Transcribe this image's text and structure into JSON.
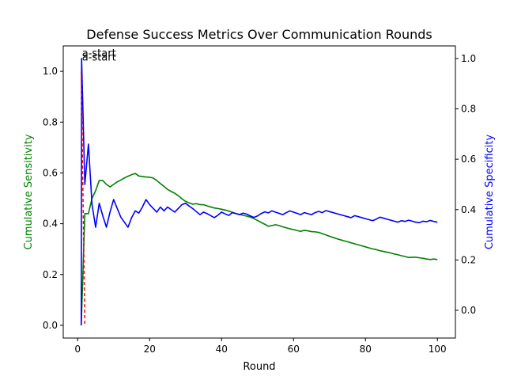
{
  "chart_data": {
    "type": "line",
    "title": "Defense Success Metrics Over Communication Rounds",
    "xlabel": "Round",
    "ylabel_left": "Cumulative Sensitivity",
    "ylabel_right": "Cumulative Specificity",
    "colors": {
      "sensitivity": "#008000",
      "specificity": "#0000ff",
      "marker": "#ff0000"
    },
    "xlim": [
      -4,
      105
    ],
    "ylim_left": [
      -0.05,
      1.1
    ],
    "ylim_right": [
      -0.11,
      1.05
    ],
    "xticks": [
      0,
      20,
      40,
      60,
      80,
      100
    ],
    "yticks_left": [
      0.0,
      0.2,
      0.4,
      0.6,
      0.8,
      1.0
    ],
    "yticks_right": [
      0.0,
      0.2,
      0.4,
      0.6,
      0.8,
      1.0
    ],
    "grid": false,
    "annotations": [
      {
        "text": "a-start",
        "x": 1,
        "y": 1.07
      },
      {
        "text": "a-start",
        "x": 1,
        "y": 1.055
      }
    ],
    "marker_line": {
      "x": [
        1,
        2
      ],
      "y": [
        1.0,
        0.0
      ]
    },
    "series": [
      {
        "axis": "left",
        "values": [
          [
            1,
            0.0
          ],
          [
            2,
            0.44
          ],
          [
            3,
            0.44
          ],
          [
            4,
            0.5
          ],
          [
            5,
            0.53
          ],
          [
            6,
            0.57
          ],
          [
            7,
            0.57
          ],
          [
            8,
            0.555
          ],
          [
            9,
            0.545
          ],
          [
            10,
            0.555
          ],
          [
            11,
            0.565
          ],
          [
            12,
            0.572
          ],
          [
            13,
            0.58
          ],
          [
            14,
            0.587
          ],
          [
            15,
            0.593
          ],
          [
            16,
            0.598
          ],
          [
            17,
            0.588
          ],
          [
            18,
            0.586
          ],
          [
            19,
            0.584
          ],
          [
            20,
            0.583
          ],
          [
            21,
            0.58
          ],
          [
            22,
            0.57
          ],
          [
            23,
            0.558
          ],
          [
            24,
            0.547
          ],
          [
            25,
            0.535
          ],
          [
            26,
            0.527
          ],
          [
            27,
            0.52
          ],
          [
            28,
            0.51
          ],
          [
            29,
            0.498
          ],
          [
            30,
            0.488
          ],
          [
            31,
            0.482
          ],
          [
            32,
            0.477
          ],
          [
            33,
            0.479
          ],
          [
            34,
            0.475
          ],
          [
            35,
            0.475
          ],
          [
            36,
            0.47
          ],
          [
            37,
            0.466
          ],
          [
            38,
            0.462
          ],
          [
            39,
            0.46
          ],
          [
            40,
            0.457
          ],
          [
            41,
            0.454
          ],
          [
            42,
            0.45
          ],
          [
            43,
            0.445
          ],
          [
            44,
            0.44
          ],
          [
            45,
            0.437
          ],
          [
            46,
            0.433
          ],
          [
            47,
            0.43
          ],
          [
            48,
            0.426
          ],
          [
            49,
            0.42
          ],
          [
            50,
            0.413
          ],
          [
            51,
            0.405
          ],
          [
            52,
            0.398
          ],
          [
            53,
            0.39
          ],
          [
            54,
            0.393
          ],
          [
            55,
            0.396
          ],
          [
            56,
            0.393
          ],
          [
            57,
            0.388
          ],
          [
            58,
            0.384
          ],
          [
            59,
            0.38
          ],
          [
            60,
            0.377
          ],
          [
            61,
            0.373
          ],
          [
            62,
            0.37
          ],
          [
            63,
            0.374
          ],
          [
            64,
            0.372
          ],
          [
            65,
            0.369
          ],
          [
            66,
            0.368
          ],
          [
            67,
            0.366
          ],
          [
            68,
            0.361
          ],
          [
            69,
            0.356
          ],
          [
            70,
            0.351
          ],
          [
            71,
            0.346
          ],
          [
            72,
            0.341
          ],
          [
            73,
            0.337
          ],
          [
            74,
            0.333
          ],
          [
            75,
            0.329
          ],
          [
            76,
            0.325
          ],
          [
            77,
            0.321
          ],
          [
            78,
            0.317
          ],
          [
            79,
            0.313
          ],
          [
            80,
            0.309
          ],
          [
            81,
            0.305
          ],
          [
            82,
            0.301
          ],
          [
            83,
            0.298
          ],
          [
            84,
            0.294
          ],
          [
            85,
            0.291
          ],
          [
            86,
            0.288
          ],
          [
            87,
            0.285
          ],
          [
            88,
            0.281
          ],
          [
            89,
            0.278
          ],
          [
            90,
            0.274
          ],
          [
            91,
            0.271
          ],
          [
            92,
            0.267
          ],
          [
            93,
            0.268
          ],
          [
            94,
            0.268
          ],
          [
            95,
            0.266
          ],
          [
            96,
            0.264
          ],
          [
            97,
            0.261
          ],
          [
            98,
            0.259
          ],
          [
            99,
            0.261
          ],
          [
            100,
            0.259
          ]
        ]
      },
      {
        "axis": "right",
        "values": [
          [
            1,
            -0.06
          ],
          [
            1.1,
            1.0
          ],
          [
            2,
            0.5
          ],
          [
            3,
            0.66
          ],
          [
            4,
            0.42
          ],
          [
            5,
            0.33
          ],
          [
            6,
            0.425
          ],
          [
            7,
            0.375
          ],
          [
            8,
            0.33
          ],
          [
            9,
            0.39
          ],
          [
            10,
            0.44
          ],
          [
            11,
            0.405
          ],
          [
            12,
            0.37
          ],
          [
            13,
            0.35
          ],
          [
            14,
            0.33
          ],
          [
            15,
            0.368
          ],
          [
            16,
            0.395
          ],
          [
            17,
            0.386
          ],
          [
            18,
            0.41
          ],
          [
            19,
            0.44
          ],
          [
            20,
            0.42
          ],
          [
            21,
            0.405
          ],
          [
            22,
            0.39
          ],
          [
            23,
            0.41
          ],
          [
            24,
            0.395
          ],
          [
            25,
            0.41
          ],
          [
            26,
            0.4
          ],
          [
            27,
            0.39
          ],
          [
            28,
            0.405
          ],
          [
            29,
            0.42
          ],
          [
            30,
            0.425
          ],
          [
            31,
            0.414
          ],
          [
            32,
            0.404
          ],
          [
            33,
            0.392
          ],
          [
            34,
            0.38
          ],
          [
            35,
            0.39
          ],
          [
            36,
            0.384
          ],
          [
            37,
            0.376
          ],
          [
            38,
            0.368
          ],
          [
            39,
            0.378
          ],
          [
            40,
            0.39
          ],
          [
            41,
            0.383
          ],
          [
            42,
            0.377
          ],
          [
            43,
            0.388
          ],
          [
            44,
            0.384
          ],
          [
            45,
            0.38
          ],
          [
            46,
            0.386
          ],
          [
            47,
            0.382
          ],
          [
            48,
            0.375
          ],
          [
            49,
            0.369
          ],
          [
            50,
            0.375
          ],
          [
            51,
            0.384
          ],
          [
            52,
            0.391
          ],
          [
            53,
            0.387
          ],
          [
            54,
            0.395
          ],
          [
            55,
            0.39
          ],
          [
            56,
            0.385
          ],
          [
            57,
            0.38
          ],
          [
            58,
            0.388
          ],
          [
            59,
            0.395
          ],
          [
            60,
            0.39
          ],
          [
            61,
            0.385
          ],
          [
            62,
            0.38
          ],
          [
            63,
            0.388
          ],
          [
            64,
            0.384
          ],
          [
            65,
            0.38
          ],
          [
            66,
            0.388
          ],
          [
            67,
            0.393
          ],
          [
            68,
            0.388
          ],
          [
            69,
            0.396
          ],
          [
            70,
            0.392
          ],
          [
            71,
            0.388
          ],
          [
            72,
            0.384
          ],
          [
            73,
            0.38
          ],
          [
            74,
            0.376
          ],
          [
            75,
            0.372
          ],
          [
            76,
            0.368
          ],
          [
            77,
            0.376
          ],
          [
            78,
            0.372
          ],
          [
            79,
            0.368
          ],
          [
            80,
            0.364
          ],
          [
            81,
            0.36
          ],
          [
            82,
            0.356
          ],
          [
            83,
            0.362
          ],
          [
            84,
            0.37
          ],
          [
            85,
            0.366
          ],
          [
            86,
            0.362
          ],
          [
            87,
            0.358
          ],
          [
            88,
            0.354
          ],
          [
            89,
            0.35
          ],
          [
            90,
            0.356
          ],
          [
            91,
            0.353
          ],
          [
            92,
            0.358
          ],
          [
            93,
            0.354
          ],
          [
            94,
            0.35
          ],
          [
            95,
            0.348
          ],
          [
            96,
            0.354
          ],
          [
            97,
            0.352
          ],
          [
            98,
            0.357
          ],
          [
            99,
            0.353
          ],
          [
            100,
            0.35
          ]
        ]
      }
    ]
  }
}
